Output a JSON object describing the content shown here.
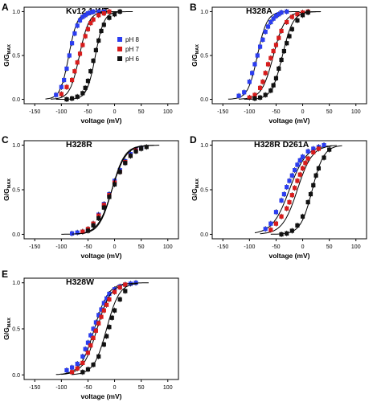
{
  "figure": {
    "ylabel_main": "G/G",
    "ylabel_sub": "MAX"
  },
  "chart_data": [
    {
      "type": "scatter",
      "panel": "A",
      "title": "Kv12.1 WT",
      "xlabel": "voltage (mV)",
      "ylabel": "G/GMAX",
      "xlim": [
        -170,
        120
      ],
      "ylim": [
        -0.05,
        1.05
      ],
      "xticks": [
        -150,
        -100,
        -50,
        0,
        50,
        100
      ],
      "yticks": [
        0.0,
        0.5,
        1.0
      ],
      "legend": {
        "position": "top-right"
      },
      "series": [
        {
          "name": "pH 8",
          "color": "#2b3df0",
          "v50": -86,
          "k": 8,
          "x": [
            -110,
            -100,
            -95,
            -90,
            -85,
            -80,
            -75,
            -70,
            -65,
            -60,
            -55,
            -50,
            -45,
            -40,
            -30,
            -20
          ],
          "y": [
            0.05,
            0.14,
            0.22,
            0.35,
            0.5,
            0.64,
            0.75,
            0.84,
            0.9,
            0.94,
            0.96,
            0.98,
            0.99,
            1.0,
            1.0,
            1.0
          ]
        },
        {
          "name": "pH 7",
          "color": "#d81c1c",
          "v50": -66,
          "k": 9,
          "x": [
            -100,
            -90,
            -80,
            -75,
            -70,
            -65,
            -60,
            -55,
            -50,
            -45,
            -40,
            -30,
            -20,
            -10
          ],
          "y": [
            0.06,
            0.14,
            0.22,
            0.32,
            0.42,
            0.52,
            0.62,
            0.72,
            0.8,
            0.87,
            0.91,
            0.96,
            0.98,
            1.0
          ]
        },
        {
          "name": "pH 6",
          "color": "#111111",
          "v50": -36,
          "k": 8,
          "x": [
            -90,
            -80,
            -70,
            -60,
            -55,
            -50,
            -45,
            -40,
            -35,
            -30,
            -25,
            -20,
            -10,
            0,
            10
          ],
          "y": [
            0.0,
            0.01,
            0.03,
            0.07,
            0.13,
            0.21,
            0.32,
            0.44,
            0.56,
            0.67,
            0.78,
            0.85,
            0.93,
            0.97,
            1.0
          ]
        }
      ]
    },
    {
      "type": "scatter",
      "panel": "B",
      "title": "H328A",
      "xlabel": "voltage (mV)",
      "ylabel": "G/GMAX",
      "xlim": [
        -170,
        120
      ],
      "ylim": [
        -0.05,
        1.05
      ],
      "xticks": [
        -150,
        -100,
        -50,
        0,
        50,
        100
      ],
      "yticks": [
        0.0,
        0.5,
        1.0
      ],
      "series": [
        {
          "color": "#2b3df0",
          "v50": -85,
          "k": 9,
          "x": [
            -120,
            -110,
            -100,
            -95,
            -90,
            -85,
            -80,
            -75,
            -70,
            -65,
            -60,
            -55,
            -50,
            -45,
            -40,
            -30
          ],
          "y": [
            0.04,
            0.08,
            0.2,
            0.3,
            0.4,
            0.5,
            0.6,
            0.68,
            0.77,
            0.83,
            0.88,
            0.92,
            0.95,
            0.97,
            0.99,
            1.0
          ]
        },
        {
          "color": "#d81c1c",
          "v50": -55,
          "k": 11,
          "x": [
            -100,
            -90,
            -80,
            -75,
            -70,
            -65,
            -60,
            -55,
            -50,
            -45,
            -40,
            -30,
            -20,
            -10,
            0,
            10
          ],
          "y": [
            0.02,
            0.05,
            0.13,
            0.2,
            0.3,
            0.4,
            0.47,
            0.55,
            0.62,
            0.7,
            0.78,
            0.88,
            0.94,
            0.97,
            0.99,
            1.0
          ]
        },
        {
          "color": "#111111",
          "v50": -38,
          "k": 10,
          "x": [
            -90,
            -80,
            -70,
            -60,
            -55,
            -50,
            -45,
            -40,
            -35,
            -30,
            -25,
            -20,
            -10,
            0,
            10
          ],
          "y": [
            0.01,
            0.02,
            0.05,
            0.1,
            0.16,
            0.24,
            0.35,
            0.45,
            0.55,
            0.64,
            0.72,
            0.8,
            0.9,
            0.96,
            0.99
          ]
        }
      ]
    },
    {
      "type": "scatter",
      "panel": "C",
      "title": "H328R",
      "xlabel": "voltage (mV)",
      "ylabel": "G/GMAX",
      "xlim": [
        -170,
        120
      ],
      "ylim": [
        -0.05,
        1.05
      ],
      "xticks": [
        -150,
        -100,
        -50,
        0,
        50,
        100
      ],
      "yticks": [
        0.0,
        0.5,
        1.0
      ],
      "series": [
        {
          "color": "#2b3df0",
          "v50": -5,
          "k": 13,
          "x": [
            -80,
            -70,
            -60,
            -50,
            -40,
            -30,
            -20,
            -10,
            0,
            10,
            20,
            30,
            40,
            50
          ],
          "y": [
            0.01,
            0.02,
            0.03,
            0.05,
            0.12,
            0.22,
            0.34,
            0.45,
            0.6,
            0.72,
            0.82,
            0.9,
            0.95,
            0.97
          ]
        },
        {
          "color": "#d81c1c",
          "v50": -5,
          "k": 13,
          "x": [
            -60,
            -50,
            -40,
            -30,
            -20,
            -10,
            0,
            10,
            20,
            30,
            40
          ],
          "y": [
            0.03,
            0.06,
            0.12,
            0.21,
            0.33,
            0.44,
            0.58,
            0.7,
            0.81,
            0.88,
            0.94
          ]
        },
        {
          "color": "#111111",
          "v50": -5,
          "k": 12,
          "x": [
            -50,
            -40,
            -30,
            -20,
            -10,
            0,
            10,
            20,
            30,
            40,
            50,
            60
          ],
          "y": [
            0.04,
            0.1,
            0.18,
            0.3,
            0.42,
            0.56,
            0.7,
            0.8,
            0.88,
            0.93,
            0.96,
            0.98
          ]
        }
      ]
    },
    {
      "type": "scatter",
      "panel": "D",
      "title": "H328R D261A",
      "xlabel": "voltage (mV)",
      "ylabel": "G/GMAX",
      "xlim": [
        -170,
        120
      ],
      "ylim": [
        -0.05,
        1.05
      ],
      "xticks": [
        -150,
        -100,
        -50,
        0,
        50,
        100
      ],
      "yticks": [
        0.0,
        0.5,
        1.0
      ],
      "series": [
        {
          "color": "#2b3df0",
          "v50": -25,
          "k": 16,
          "x": [
            -70,
            -60,
            -50,
            -40,
            -35,
            -30,
            -25,
            -20,
            -15,
            -10,
            -5,
            0,
            10,
            20,
            30,
            40
          ],
          "y": [
            0.06,
            0.12,
            0.25,
            0.38,
            0.45,
            0.53,
            0.6,
            0.66,
            0.72,
            0.78,
            0.83,
            0.87,
            0.93,
            0.96,
            0.98,
            1.0
          ]
        },
        {
          "color": "#d81c1c",
          "v50": -10,
          "k": 14,
          "x": [
            -60,
            -50,
            -40,
            -30,
            -25,
            -20,
            -15,
            -10,
            -5,
            0,
            5,
            10,
            20,
            30
          ],
          "y": [
            0.05,
            0.12,
            0.2,
            0.29,
            0.36,
            0.44,
            0.52,
            0.6,
            0.67,
            0.74,
            0.8,
            0.85,
            0.92,
            0.96
          ]
        },
        {
          "color": "#111111",
          "v50": 18,
          "k": 11,
          "x": [
            -40,
            -30,
            -20,
            -10,
            0,
            10,
            15,
            20,
            25,
            30,
            40,
            50
          ],
          "y": [
            0.0,
            0.01,
            0.04,
            0.1,
            0.2,
            0.36,
            0.45,
            0.55,
            0.66,
            0.74,
            0.86,
            0.95
          ]
        }
      ]
    },
    {
      "type": "scatter",
      "panel": "E",
      "title": "H328W",
      "xlabel": "voltage (mV)",
      "ylabel": "G/GMAX",
      "xlim": [
        -170,
        120
      ],
      "ylim": [
        -0.05,
        1.05
      ],
      "xticks": [
        -150,
        -100,
        -50,
        0,
        50,
        100
      ],
      "yticks": [
        0.0,
        0.5,
        1.0
      ],
      "series": [
        {
          "color": "#2b3df0",
          "v50": -38,
          "k": 13,
          "x": [
            -90,
            -80,
            -70,
            -60,
            -55,
            -50,
            -45,
            -40,
            -35,
            -30,
            -25,
            -20,
            -15,
            -10,
            0,
            10,
            20,
            30,
            40
          ],
          "y": [
            0.05,
            0.08,
            0.12,
            0.2,
            0.28,
            0.35,
            0.43,
            0.5,
            0.57,
            0.65,
            0.71,
            0.78,
            0.83,
            0.88,
            0.93,
            0.96,
            0.98,
            0.99,
            1.0
          ]
        },
        {
          "color": "#d81c1c",
          "v50": -33,
          "k": 13,
          "x": [
            -80,
            -70,
            -60,
            -50,
            -45,
            -40,
            -35,
            -30,
            -25,
            -20,
            -15,
            -10,
            0,
            10,
            20
          ],
          "y": [
            0.03,
            0.07,
            0.13,
            0.24,
            0.32,
            0.4,
            0.48,
            0.56,
            0.63,
            0.7,
            0.76,
            0.82,
            0.9,
            0.95,
            0.98
          ]
        },
        {
          "color": "#111111",
          "v50": -15,
          "k": 12,
          "x": [
            -60,
            -50,
            -40,
            -30,
            -20,
            -15,
            -10,
            -5,
            0,
            10,
            20
          ],
          "y": [
            0.03,
            0.06,
            0.11,
            0.2,
            0.33,
            0.42,
            0.52,
            0.62,
            0.7,
            0.82,
            0.91
          ]
        }
      ]
    }
  ]
}
